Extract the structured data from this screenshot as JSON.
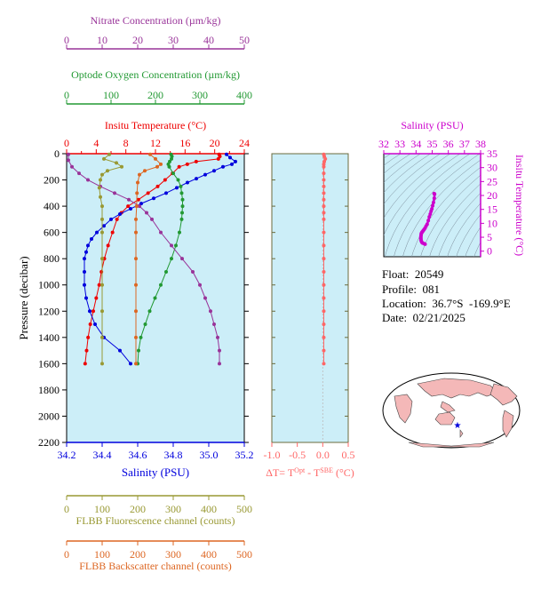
{
  "colors": {
    "temperature": "#ee0000",
    "salinity": "#0000dd",
    "oxygen": "#229933",
    "nitrate": "#993399",
    "fluorescence": "#999933",
    "backscatter": "#dd6622",
    "dT": "#ff6666",
    "magenta": "#cc00cc",
    "panel_bg": "#cceef8",
    "frame": "#6b6b3d"
  },
  "info": {
    "float": "Float:  20549",
    "profile": "Profile:  081",
    "location": "Location:  36.7°S  -169.9°E",
    "date": "Date:  02/21/2025"
  },
  "chart_data": [
    {
      "type": "line",
      "y_axis": {
        "label": "Pressure (decibar)",
        "range": [
          2200,
          0
        ],
        "ticks": [
          "0",
          "200",
          "400",
          "600",
          "800",
          "1000",
          "1200",
          "1400",
          "1600",
          "1800",
          "2000",
          "2200"
        ]
      },
      "axes": {
        "nitrate": {
          "label": "Nitrate Concentration (µm/kg)",
          "range": [
            0,
            50
          ],
          "ticks": [
            "0",
            "10",
            "20",
            "30",
            "40",
            "50"
          ]
        },
        "oxygen": {
          "label": "Optode Oxygen Concentration (µm/kg)",
          "range": [
            0,
            400
          ],
          "ticks": [
            "0",
            "100",
            "200",
            "300",
            "400"
          ]
        },
        "temperature": {
          "label": "Insitu Temperature (°C)",
          "range": [
            0,
            24
          ],
          "ticks": [
            "0",
            "4",
            "8",
            "12",
            "16",
            "20",
            "24"
          ],
          "tick_positions": [
            0,
            4,
            8,
            12,
            16,
            20,
            24
          ],
          "extra_tick_positions": [
            2,
            6,
            10,
            14,
            18,
            22
          ]
        },
        "salinity": {
          "label": "Salinity (PSU)",
          "range": [
            34.2,
            35.2
          ],
          "ticks": [
            "34.2",
            "34.4",
            "34.6",
            "34.8",
            "35.0",
            "35.2"
          ]
        },
        "fluorescence": {
          "label": "FLBB Fluorescence channel (counts)",
          "range": [
            0,
            500
          ],
          "ticks": [
            "0",
            "100",
            "200",
            "300",
            "400",
            "500"
          ]
        },
        "backscatter": {
          "label": "FLBB Backscatter channel (counts)",
          "range": [
            0,
            500
          ],
          "ticks": [
            "0",
            "100",
            "200",
            "300",
            "400",
            "500"
          ]
        }
      },
      "series": [
        {
          "name": "temperature",
          "axis": "temperature",
          "points": [
            [
              20.6,
              5
            ],
            [
              20.7,
              20
            ],
            [
              20.5,
              40
            ],
            [
              17.5,
              60
            ],
            [
              16.3,
              80
            ],
            [
              15.2,
              100
            ],
            [
              14.3,
              150
            ],
            [
              13.3,
              200
            ],
            [
              12.3,
              250
            ],
            [
              11.0,
              300
            ],
            [
              9.7,
              350
            ],
            [
              8.3,
              400
            ],
            [
              7.4,
              450
            ],
            [
              6.8,
              500
            ],
            [
              6.2,
              600
            ],
            [
              5.6,
              700
            ],
            [
              5.1,
              800
            ],
            [
              4.7,
              900
            ],
            [
              4.4,
              1000
            ],
            [
              4.0,
              1100
            ],
            [
              3.6,
              1200
            ],
            [
              3.2,
              1300
            ],
            [
              2.9,
              1400
            ],
            [
              2.7,
              1500
            ],
            [
              2.5,
              1600
            ]
          ]
        },
        {
          "name": "salinity",
          "axis": "salinity",
          "points": [
            [
              35.1,
              5
            ],
            [
              35.12,
              30
            ],
            [
              35.15,
              60
            ],
            [
              35.13,
              80
            ],
            [
              35.08,
              100
            ],
            [
              35.03,
              130
            ],
            [
              34.98,
              160
            ],
            [
              34.93,
              190
            ],
            [
              34.88,
              220
            ],
            [
              34.82,
              260
            ],
            [
              34.76,
              300
            ],
            [
              34.69,
              340
            ],
            [
              34.62,
              380
            ],
            [
              34.56,
              420
            ],
            [
              34.5,
              460
            ],
            [
              34.45,
              500
            ],
            [
              34.41,
              550
            ],
            [
              34.37,
              600
            ],
            [
              34.34,
              650
            ],
            [
              34.32,
              700
            ],
            [
              34.31,
              750
            ],
            [
              34.3,
              800
            ],
            [
              34.3,
              900
            ],
            [
              34.3,
              1000
            ],
            [
              34.31,
              1100
            ],
            [
              34.33,
              1200
            ],
            [
              34.36,
              1300
            ],
            [
              34.41,
              1400
            ],
            [
              34.5,
              1500
            ],
            [
              34.56,
              1600
            ]
          ]
        },
        {
          "name": "oxygen",
          "axis": "oxygen",
          "points": [
            [
              235,
              5
            ],
            [
              237,
              20
            ],
            [
              236,
              40
            ],
            [
              232,
              60
            ],
            [
              229,
              80
            ],
            [
              231,
              100
            ],
            [
              240,
              150
            ],
            [
              251,
              200
            ],
            [
              257,
              250
            ],
            [
              259,
              300
            ],
            [
              261,
              350
            ],
            [
              261,
              400
            ],
            [
              260,
              450
            ],
            [
              259,
              500
            ],
            [
              254,
              600
            ],
            [
              246,
              700
            ],
            [
              236,
              800
            ],
            [
              224,
              900
            ],
            [
              212,
              1000
            ],
            [
              199,
              1100
            ],
            [
              187,
              1200
            ],
            [
              177,
              1300
            ],
            [
              167,
              1400
            ],
            [
              162,
              1500
            ],
            [
              160,
              1600
            ]
          ]
        },
        {
          "name": "nitrate",
          "axis": "nitrate",
          "points": [
            [
              0.5,
              5
            ],
            [
              0.5,
              50
            ],
            [
              1.5,
              100
            ],
            [
              3.5,
              150
            ],
            [
              6,
              200
            ],
            [
              9.5,
              250
            ],
            [
              13.5,
              300
            ],
            [
              17.5,
              350
            ],
            [
              20.5,
              400
            ],
            [
              22.5,
              450
            ],
            [
              24,
              500
            ],
            [
              26.5,
              600
            ],
            [
              29.5,
              700
            ],
            [
              32.5,
              800
            ],
            [
              35.5,
              900
            ],
            [
              37.5,
              1000
            ],
            [
              39,
              1100
            ],
            [
              40.5,
              1200
            ],
            [
              41.5,
              1300
            ],
            [
              42.5,
              1400
            ],
            [
              43,
              1500
            ],
            [
              43,
              1600
            ]
          ]
        },
        {
          "name": "fluorescence",
          "axis": "fluorescence",
          "points": [
            [
              120,
              5
            ],
            [
              105,
              40
            ],
            [
              140,
              70
            ],
            [
              155,
              100
            ],
            [
              115,
              130
            ],
            [
              100,
              160
            ],
            [
              95,
              200
            ],
            [
              92,
              260
            ],
            [
              95,
              330
            ],
            [
              100,
              400
            ],
            [
              100,
              500
            ],
            [
              100,
              600
            ],
            [
              100,
              800
            ],
            [
              100,
              1000
            ],
            [
              100,
              1200
            ],
            [
              100,
              1400
            ],
            [
              100,
              1600
            ]
          ]
        },
        {
          "name": "backscatter",
          "axis": "backscatter",
          "points": [
            [
              235,
              5
            ],
            [
              250,
              40
            ],
            [
              265,
              80
            ],
            [
              255,
              100
            ],
            [
              220,
              130
            ],
            [
              205,
              160
            ],
            [
              200,
              220
            ],
            [
              198,
              300
            ],
            [
              197,
              400
            ],
            [
              195,
              500
            ],
            [
              195,
              600
            ],
            [
              195,
              800
            ],
            [
              195,
              1000
            ],
            [
              195,
              1200
            ],
            [
              195,
              1400
            ],
            [
              195,
              1600
            ]
          ]
        }
      ]
    },
    {
      "type": "line",
      "x_axis": {
        "label": "ΔT= T^Opt - T^SBE (°C)",
        "label_parts": {
          "a": "ΔT= T",
          "sup1": "Opt",
          "b": " - T",
          "sup2": "SBE",
          "c": " (°C)"
        },
        "range": [
          -1.0,
          0.5
        ],
        "ticks": [
          "-1.0",
          "-0.5",
          "0.0",
          "0.5"
        ]
      },
      "y_axis": {
        "range": [
          2200,
          0
        ]
      },
      "series": [
        {
          "name": "dT",
          "points": [
            [
              0.02,
              5
            ],
            [
              0.03,
              20
            ],
            [
              0.05,
              40
            ],
            [
              0.03,
              60
            ],
            [
              0.02,
              80
            ],
            [
              0.02,
              100
            ],
            [
              0.02,
              150
            ],
            [
              0.02,
              200
            ],
            [
              0.02,
              250
            ],
            [
              0.02,
              300
            ],
            [
              0.02,
              350
            ],
            [
              0.02,
              400
            ],
            [
              0.02,
              450
            ],
            [
              0.02,
              500
            ],
            [
              0.02,
              600
            ],
            [
              0.02,
              700
            ],
            [
              0.02,
              800
            ],
            [
              0.02,
              900
            ],
            [
              0.02,
              1000
            ],
            [
              0.02,
              1100
            ],
            [
              0.02,
              1200
            ],
            [
              0.02,
              1300
            ],
            [
              0.02,
              1400
            ],
            [
              0.02,
              1500
            ],
            [
              0.02,
              1600
            ]
          ]
        }
      ]
    },
    {
      "type": "scatter",
      "x_axis": {
        "label": "Salinity (PSU)",
        "range": [
          32,
          38
        ],
        "ticks": [
          "32",
          "33",
          "34",
          "35",
          "36",
          "37",
          "38"
        ]
      },
      "y_axis": {
        "label": "Insitu Temperature (°C)",
        "range": [
          -2,
          35
        ],
        "ticks": [
          "0",
          "5",
          "10",
          "15",
          "20",
          "25",
          "30",
          "35"
        ]
      },
      "series": [
        {
          "name": "TS",
          "points": [
            [
              34.56,
              2.5
            ],
            [
              34.5,
              2.7
            ],
            [
              34.41,
              2.9
            ],
            [
              34.36,
              3.2
            ],
            [
              34.33,
              3.6
            ],
            [
              34.31,
              4.0
            ],
            [
              34.3,
              4.4
            ],
            [
              34.3,
              4.7
            ],
            [
              34.3,
              5.1
            ],
            [
              34.31,
              5.6
            ],
            [
              34.32,
              6.2
            ],
            [
              34.34,
              6.5
            ],
            [
              34.37,
              6.8
            ],
            [
              34.41,
              7.1
            ],
            [
              34.45,
              7.4
            ],
            [
              34.5,
              7.8
            ],
            [
              34.56,
              8.3
            ],
            [
              34.62,
              9.0
            ],
            [
              34.69,
              9.7
            ],
            [
              34.76,
              11.0
            ],
            [
              34.82,
              12.3
            ],
            [
              34.88,
              13.3
            ],
            [
              34.93,
              14.3
            ],
            [
              34.98,
              15.2
            ],
            [
              35.03,
              16.3
            ],
            [
              35.08,
              17.5
            ],
            [
              35.13,
              19.0
            ],
            [
              35.15,
              20.5
            ],
            [
              35.12,
              20.7
            ]
          ]
        }
      ]
    }
  ]
}
